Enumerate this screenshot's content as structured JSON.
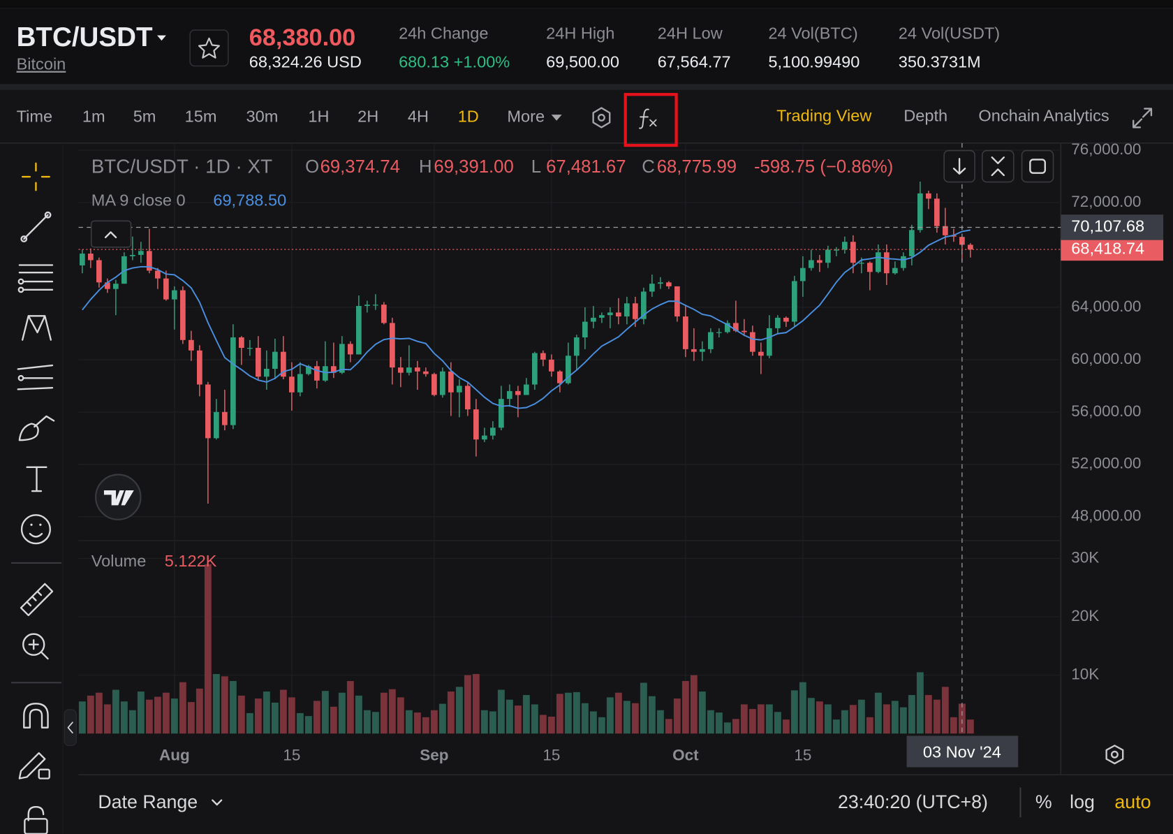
{
  "header": {
    "symbol": "BTC/USDT",
    "name": "Bitcoin",
    "price": "68,380.00",
    "price_usd": "68,324.26 USD",
    "stats": [
      {
        "label": "24h Change",
        "value": "680.13 +1.00%"
      },
      {
        "label": "24H High",
        "value": "69,500.00"
      },
      {
        "label": "24H Low",
        "value": "67,564.77"
      },
      {
        "label": "24 Vol(BTC)",
        "value": "5,100.99490"
      },
      {
        "label": "24 Vol(USDT)",
        "value": "350.3731M"
      }
    ]
  },
  "toolbar": {
    "intervals": [
      "Time",
      "1m",
      "5m",
      "15m",
      "30m",
      "1H",
      "2H",
      "4H",
      "1D",
      "More"
    ],
    "views": [
      "Trading View",
      "Depth",
      "Onchain Analytics"
    ]
  },
  "chart_data": {
    "type": "candlestick",
    "title": "BTC/USDT · 1D · XT",
    "ohlc": [
      {
        "key": "O",
        "value": 69374.74,
        "label": "69,374.74"
      },
      {
        "key": "H",
        "value": 69391.0,
        "label": "69,391.00"
      },
      {
        "key": "L",
        "value": 67481.67,
        "label": "67,481.67"
      },
      {
        "key": "C",
        "value": 68775.99,
        "label": "68,775.99"
      }
    ],
    "change": "-598.75 (−0.86%)",
    "up_color": "#2ea07a",
    "down_color": "#e85c62",
    "volume_up_color": "#2b5e50",
    "volume_down_color": "#7a333a",
    "categories": [
      null,
      null,
      null,
      null,
      null,
      null,
      null,
      null,
      null,
      null,
      null,
      "Aug",
      null,
      null,
      null,
      null,
      null,
      null,
      null,
      null,
      null,
      null,
      null,
      null,
      null,
      "15",
      null,
      null,
      null,
      null,
      null,
      null,
      null,
      null,
      null,
      null,
      null,
      null,
      null,
      null,
      null,
      null,
      "Sep",
      null,
      null,
      null,
      null,
      null,
      null,
      null,
      null,
      null,
      null,
      null,
      null,
      null,
      "15",
      null,
      null,
      null,
      null,
      null,
      null,
      null,
      null,
      null,
      null,
      null,
      null,
      null,
      null,
      null,
      "Oct",
      null,
      null,
      null,
      null,
      null,
      null,
      null,
      null,
      null,
      null,
      null,
      null,
      null,
      "15",
      null,
      null,
      null,
      null,
      null,
      null,
      null,
      null,
      null,
      null,
      null,
      null,
      null,
      null,
      null,
      null,
      null,
      null,
      null,
      null
    ],
    "open": [
      67200,
      68100,
      67600,
      65900,
      65400,
      65800,
      67900,
      68000,
      68300,
      66800,
      66200,
      64600,
      65300,
      61500,
      60700,
      58100,
      54000,
      56000,
      55000,
      61700,
      60900,
      60900,
      58700,
      59300,
      60600,
      58700,
      57500,
      58900,
      59500,
      58400,
      59500,
      59000,
      61200,
      60400,
      64100,
      64200,
      64200,
      62800,
      59400,
      59000,
      59400,
      59100,
      58900,
      57300,
      59100,
      57500,
      58000,
      56200,
      53900,
      54200,
      54800,
      57000,
      57600,
      57300,
      58100,
      60500,
      60000,
      59100,
      58200,
      60300,
      61700,
      62900,
      63200,
      63400,
      63600,
      63300,
      64300,
      63100,
      65200,
      65800,
      65900,
      65600,
      63300,
      60800,
      60600,
      60800,
      62100,
      62100,
      62800,
      62200,
      62100,
      60600,
      60300,
      62400,
      63200,
      62900,
      66000,
      67000,
      67600,
      67400,
      68400,
      68400,
      69000,
      67400,
      67400,
      66700,
      68200,
      66600,
      67000,
      67900,
      69900,
      72700,
      72300,
      70200,
      69500,
      69374.74,
      68775.99
    ],
    "high": [
      68400,
      68500,
      67800,
      66200,
      66100,
      68200,
      69400,
      69000,
      70000,
      67000,
      66800,
      65600,
      65600,
      62200,
      61100,
      58300,
      57000,
      57700,
      62700,
      61800,
      61500,
      61800,
      60700,
      61600,
      61800,
      59800,
      59800,
      59600,
      59900,
      61400,
      61300,
      61800,
      61400,
      64900,
      64500,
      65000,
      64400,
      63200,
      60200,
      61100,
      59900,
      59400,
      59000,
      59400,
      59800,
      58500,
      58300,
      57000,
      54800,
      55300,
      58000,
      58100,
      58000,
      58600,
      60600,
      60700,
      60400,
      59200,
      61300,
      61900,
      64000,
      64100,
      63600,
      64000,
      64700,
      64800,
      64800,
      65500,
      66500,
      66300,
      66000,
      65600,
      64100,
      62400,
      61400,
      62400,
      62400,
      63000,
      64500,
      63100,
      62600,
      61300,
      63400,
      63400,
      63300,
      66400,
      67900,
      68400,
      68000,
      68700,
      68600,
      69400,
      69500,
      67800,
      67500,
      68800,
      68800,
      67500,
      68200,
      70300,
      73600,
      72900,
      72700,
      71600,
      70000,
      69391,
      68900
    ],
    "low": [
      66600,
      67000,
      65500,
      65100,
      63400,
      65800,
      67600,
      67400,
      66600,
      65400,
      64500,
      62300,
      61200,
      59900,
      57200,
      49000,
      53900,
      54600,
      54700,
      59600,
      60300,
      58500,
      57700,
      58500,
      58500,
      56100,
      57200,
      58800,
      57800,
      58300,
      58600,
      58900,
      59800,
      60400,
      63600,
      63800,
      62700,
      58100,
      57900,
      58800,
      57700,
      58700,
      57200,
      57100,
      55700,
      55600,
      55700,
      52600,
      53700,
      53900,
      54600,
      56400,
      55600,
      57300,
      57700,
      59500,
      58700,
      57500,
      58100,
      59200,
      60800,
      62400,
      62800,
      62400,
      62700,
      62700,
      62500,
      62700,
      64800,
      65400,
      65400,
      62900,
      60200,
      59900,
      59900,
      60500,
      61700,
      62000,
      62100,
      61800,
      60300,
      58900,
      60100,
      62000,
      62500,
      62500,
      64800,
      66800,
      66700,
      67000,
      67900,
      68100,
      66600,
      66600,
      65300,
      66600,
      65700,
      66500,
      66800,
      67200,
      69700,
      71500,
      69700,
      68800,
      69000,
      67481.67,
      67800
    ],
    "close": [
      68100,
      67600,
      65900,
      65400,
      65800,
      67900,
      68000,
      68300,
      66800,
      66200,
      64600,
      65300,
      61500,
      60700,
      58100,
      54000,
      56000,
      55000,
      61700,
      60900,
      60900,
      58700,
      59300,
      60600,
      58700,
      57500,
      58900,
      59500,
      58400,
      59500,
      59000,
      61200,
      60400,
      64100,
      64200,
      64200,
      62800,
      59400,
      59000,
      59400,
      59100,
      58900,
      57300,
      59100,
      57500,
      58000,
      56200,
      53900,
      54200,
      54800,
      57000,
      57600,
      57300,
      58100,
      60500,
      60000,
      59100,
      58200,
      60300,
      61700,
      62900,
      63200,
      63400,
      63600,
      63300,
      64300,
      63100,
      65200,
      65800,
      65900,
      65600,
      63300,
      60800,
      60600,
      60800,
      62100,
      62100,
      62800,
      62200,
      62100,
      60600,
      60300,
      62400,
      63200,
      62900,
      66000,
      67000,
      67600,
      67400,
      68400,
      68400,
      69000,
      67400,
      67400,
      66700,
      68200,
      66600,
      67000,
      67900,
      69900,
      72700,
      72300,
      70200,
      69500,
      69400,
      68775.99,
      68418.74
    ],
    "ma": {
      "name": "MA 9 close 0",
      "color": "#4a8fe0",
      "legend_value": {
        "value": 69788.5,
        "label": "69,788.50"
      },
      "values": [
        63800,
        64600,
        65300,
        65900,
        66300,
        66800,
        67000,
        67100,
        67090,
        66880,
        66540,
        66480,
        66040,
        65480,
        64390,
        62830,
        61470,
        60160,
        59660,
        59240,
        58760,
        58440,
        58290,
        58570,
        59090,
        59260,
        59690,
        59440,
        59170,
        59010,
        59040,
        59260,
        59230,
        59830,
        60580,
        61170,
        61530,
        61640,
        61590,
        61630,
        61400,
        61230,
        60480,
        59910,
        59170,
        58630,
        58280,
        57710,
        57130,
        56660,
        56440,
        56480,
        56280,
        56340,
        56620,
        57040,
        57620,
        58070,
        58680,
        59200,
        59790,
        60440,
        61030,
        61380,
        61740,
        62320,
        62870,
        63410,
        63870,
        64200,
        64470,
        64460,
        64140,
        63840,
        63460,
        63340,
        63000,
        62670,
        62260,
        61870,
        61570,
        61510,
        61710,
        61980,
        62070,
        62500,
        62970,
        63570,
        64160,
        65020,
        65920,
        66660,
        67120,
        67620,
        67700,
        67830,
        67720,
        67680,
        67620,
        67790,
        68200,
        68740,
        69060,
        69370,
        69500,
        69788.5,
        69900
      ]
    },
    "ylim": [
      46300,
      76600
    ],
    "yticks": [
      {
        "value": 76000,
        "label": "76,000.00"
      },
      {
        "value": 72000,
        "label": "72,000.00"
      },
      {
        "value": 64000,
        "label": "64,000.00"
      },
      {
        "value": 60000,
        "label": "60,000.00"
      },
      {
        "value": 56000,
        "label": "56,000.00"
      },
      {
        "value": 52000,
        "label": "52,000.00"
      },
      {
        "value": 48000,
        "label": "48,000.00"
      }
    ],
    "grid": true,
    "last_price": {
      "value": 68418.74,
      "label": "68,418.74"
    },
    "crosshair": {
      "price": {
        "value": 70107.68,
        "label": "70,107.68"
      },
      "date": "03 Nov '24"
    },
    "volume": {
      "name": "Volume",
      "legend_value": {
        "value": 5122,
        "label": "5.122K"
      },
      "ylim": [
        0,
        31400
      ],
      "yticks": [
        {
          "value": 30000,
          "label": "30K"
        },
        {
          "value": 20000,
          "label": "20K"
        },
        {
          "value": 10000,
          "label": "10K"
        }
      ],
      "values": [
        5500,
        6500,
        7000,
        5000,
        7500,
        5500,
        4000,
        7200,
        5800,
        6300,
        7000,
        6000,
        8800,
        5400,
        7700,
        29000,
        10200,
        9800,
        9000,
        6500,
        3500,
        6000,
        7200,
        5300,
        7500,
        6200,
        3500,
        3000,
        5600,
        7300,
        4600,
        7000,
        9000,
        6500,
        4000,
        3700,
        7000,
        7600,
        6200,
        4000,
        3600,
        2800,
        4000,
        5100,
        7200,
        8000,
        10000,
        10200,
        4000,
        3800,
        7500,
        5800,
        4800,
        6600,
        5000,
        3200,
        2900,
        6800,
        7000,
        7100,
        5200,
        3800,
        2800,
        6200,
        7000,
        5600,
        5200,
        8700,
        6400,
        4000,
        2500,
        6000,
        9000,
        10000,
        7200,
        4000,
        3600,
        1900,
        2500,
        5000,
        4200,
        5000,
        5000,
        3700,
        2400,
        7400,
        8800,
        6100,
        5500,
        5000,
        2400,
        4000,
        4900,
        5800,
        2800,
        7000,
        5000,
        5600,
        4500,
        6600,
        10500,
        6600,
        5800,
        8000,
        2800,
        5122,
        2400
      ]
    }
  },
  "footer": {
    "date_range": "Date Range",
    "time": "23:40:20 (UTC+8)",
    "options": [
      "%",
      "log",
      "auto"
    ]
  }
}
